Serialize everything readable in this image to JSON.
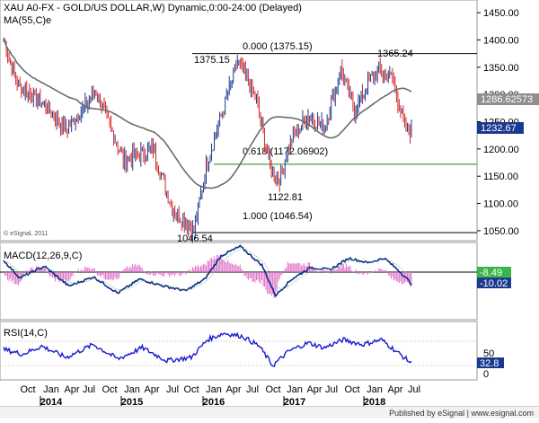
{
  "chart_title": "XAU A0-FX - GOLD/US DOLLAR,W) Dynamic,0:00-24:00 (Delayed)",
  "ma_label": "MA(55,C)e",
  "watermark": "© eSignal, 2011",
  "footer": "Published by eSignal | www.esignal.com",
  "colors": {
    "up_bar": "#1b3a8f",
    "down_bar": "#d62828",
    "ma_line": "#6b6b6b",
    "fib_green": "#1e8a1e",
    "fib_black": "#000000",
    "last_price_box": "#1b3a8f",
    "ma_value_box": "#8f8f8f",
    "macd_line": "#0a2a8a",
    "macd_hist": "#e070c8",
    "rsi_line": "#1a1ad0"
  },
  "chart_data": {
    "type": "ohlc",
    "y_ticks": [
      1050,
      1100,
      1150,
      1200,
      1250,
      1300,
      1350,
      1400,
      1450
    ],
    "ylim": [
      1035,
      1470
    ],
    "x_months": [
      "Oct",
      "Jan",
      "Apr",
      "Jul",
      "Oct",
      "Jan",
      "Apr",
      "Jul",
      "Oct",
      "Jan",
      "Apr",
      "Jul",
      "Oct",
      "Jan",
      "Apr",
      "Jul",
      "Oct",
      "Jan",
      "Apr",
      "Jul"
    ],
    "x_years": [
      "2014",
      "2015",
      "2016",
      "2017",
      "2018"
    ],
    "price_anchors": [
      {
        "week": 0,
        "price": 1400
      },
      {
        "week": 10,
        "price": 1320
      },
      {
        "week": 30,
        "price": 1280
      },
      {
        "week": 46,
        "price": 1235
      },
      {
        "week": 68,
        "price": 1305
      },
      {
        "week": 88,
        "price": 1180
      },
      {
        "week": 110,
        "price": 1200
      },
      {
        "week": 124,
        "price": 1090
      },
      {
        "week": 140,
        "price": 1050
      },
      {
        "week": 150,
        "price": 1180
      },
      {
        "week": 160,
        "price": 1260
      },
      {
        "week": 172,
        "price": 1360
      },
      {
        "week": 186,
        "price": 1290
      },
      {
        "week": 196,
        "price": 1170
      },
      {
        "week": 202,
        "price": 1140
      },
      {
        "week": 212,
        "price": 1220
      },
      {
        "week": 224,
        "price": 1260
      },
      {
        "week": 236,
        "price": 1240
      },
      {
        "week": 248,
        "price": 1345
      },
      {
        "week": 258,
        "price": 1270
      },
      {
        "week": 274,
        "price": 1345
      },
      {
        "week": 286,
        "price": 1330
      },
      {
        "week": 295,
        "price": 1240
      },
      {
        "week": 300,
        "price": 1232
      }
    ],
    "last_price": "1232.67",
    "ma_value": "1286.62573",
    "annotations": {
      "high_left": "1375.15",
      "high_right": "1365.24",
      "low_mid": "1122.81",
      "low_left": "1046.54",
      "fib_0": "0.000 (1375.15)",
      "fib_618": "0.618 (1172.06902)",
      "fib_100": "1.000 (1046.54)"
    },
    "fib_levels": [
      1375.15,
      1172.06902,
      1046.54
    ]
  },
  "macd": {
    "label": "MACD(12,26,9,C)",
    "value_top": "-8.49",
    "value_bottom": "-10.02",
    "anchors": [
      {
        "week": 0,
        "value": 10
      },
      {
        "week": 12,
        "value": -5
      },
      {
        "week": 30,
        "value": 5
      },
      {
        "week": 48,
        "value": -12
      },
      {
        "week": 66,
        "value": -4
      },
      {
        "week": 84,
        "value": -18
      },
      {
        "week": 100,
        "value": -6
      },
      {
        "week": 118,
        "value": -12
      },
      {
        "week": 134,
        "value": -16
      },
      {
        "week": 148,
        "value": -6
      },
      {
        "week": 160,
        "value": 14
      },
      {
        "week": 174,
        "value": 22
      },
      {
        "week": 190,
        "value": 6
      },
      {
        "week": 200,
        "value": -20
      },
      {
        "week": 212,
        "value": -6
      },
      {
        "week": 226,
        "value": 4
      },
      {
        "week": 240,
        "value": 2
      },
      {
        "week": 254,
        "value": 12
      },
      {
        "week": 268,
        "value": 8
      },
      {
        "week": 280,
        "value": 12
      },
      {
        "week": 292,
        "value": 0
      },
      {
        "week": 300,
        "value": -10
      }
    ]
  },
  "rsi": {
    "label": "RSI(14,C)",
    "ticks": [
      "50",
      "0"
    ],
    "value": "32.8",
    "anchors": [
      {
        "week": 0,
        "value": 50
      },
      {
        "week": 14,
        "value": 44
      },
      {
        "week": 28,
        "value": 54
      },
      {
        "week": 46,
        "value": 40
      },
      {
        "week": 66,
        "value": 56
      },
      {
        "week": 84,
        "value": 38
      },
      {
        "week": 102,
        "value": 52
      },
      {
        "week": 120,
        "value": 36
      },
      {
        "week": 138,
        "value": 40
      },
      {
        "week": 150,
        "value": 62
      },
      {
        "week": 162,
        "value": 70
      },
      {
        "week": 176,
        "value": 66
      },
      {
        "week": 188,
        "value": 54
      },
      {
        "week": 198,
        "value": 30
      },
      {
        "week": 210,
        "value": 48
      },
      {
        "week": 224,
        "value": 58
      },
      {
        "week": 236,
        "value": 52
      },
      {
        "week": 250,
        "value": 62
      },
      {
        "week": 264,
        "value": 56
      },
      {
        "week": 278,
        "value": 62
      },
      {
        "week": 290,
        "value": 46
      },
      {
        "week": 300,
        "value": 32.8
      }
    ]
  }
}
